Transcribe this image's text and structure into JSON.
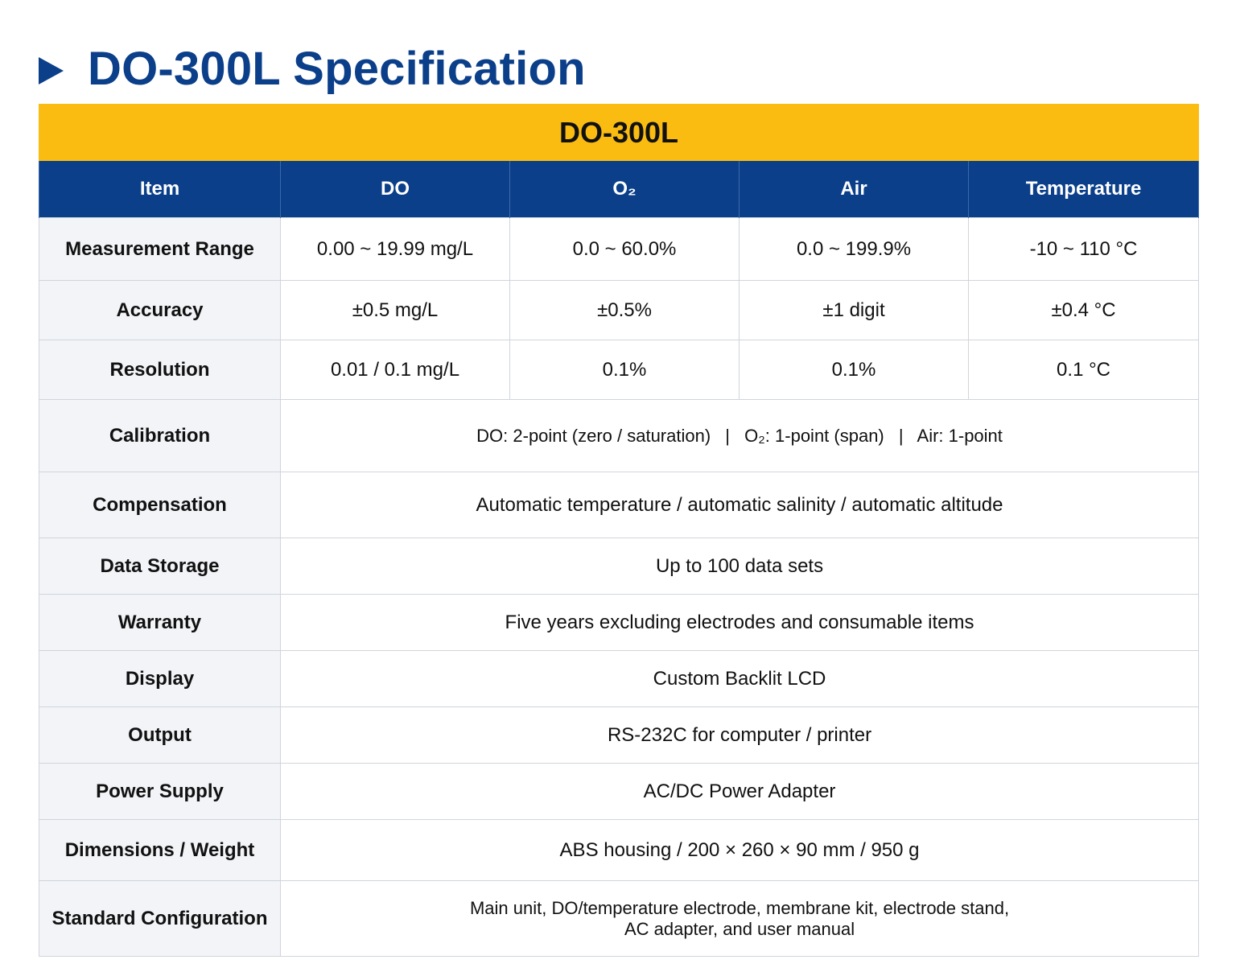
{
  "page": {
    "title": "DO-300L Specification"
  },
  "table": {
    "product": "DO-300L",
    "headers": [
      "Item",
      "DO",
      "O₂",
      "Air",
      "Temperature"
    ],
    "measurement_range": {
      "label": "Measurement Range",
      "do": "0.00 ~ 19.99 mg/L",
      "o2": "0.0 ~ 60.0%",
      "air": "0.0 ~ 199.9%",
      "temperature": "-10 ~ 110 °C"
    },
    "accuracy": {
      "label": "Accuracy",
      "do": "±0.5 mg/L",
      "o2": "±0.5%",
      "air": "±1 digit",
      "temperature": "±0.4 °C"
    },
    "resolution": {
      "label": "Resolution",
      "do": "0.01 / 0.1 mg/L",
      "o2": "0.1%",
      "air": "0.1%",
      "temperature": "0.1 °C"
    },
    "calibration": {
      "label": "Calibration",
      "do": "DO: 2-point (zero / saturation)",
      "o2": "O₂: 1-point (span)",
      "air": "Air: 1-point",
      "separator": "|"
    },
    "compensation": {
      "label": "Compensation",
      "value": "Automatic temperature / automatic salinity / automatic altitude"
    },
    "data_storage": {
      "label": "Data Storage",
      "value": "Up to 100 data sets"
    },
    "warranty": {
      "label": "Warranty",
      "value": "Five years excluding electrodes and consumable items"
    },
    "display": {
      "label": "Display",
      "value": "Custom Backlit LCD"
    },
    "output": {
      "label": "Output",
      "value": "RS-232C for computer / printer"
    },
    "power_supply": {
      "label": "Power Supply",
      "value": "AC/DC Power Adapter"
    },
    "dimensions_weight": {
      "label": "Dimensions / Weight",
      "value": "ABS housing / 200 × 260 × 90 mm / 950 g"
    },
    "standard_configuration": {
      "label": "Standard Configuration",
      "line1": "Main unit, DO/temperature electrode, membrane kit, electrode stand,",
      "line2": "AC adapter, and user manual"
    }
  },
  "colors": {
    "title_blue": "#0b3f8a",
    "banner_yellow": "#fbbc12",
    "header_blue": "#0b3f8a",
    "label_gray": "#f2f4f7",
    "border": "#d0d5dc"
  },
  "icons": {
    "title_marker": "play-triangle-icon"
  }
}
